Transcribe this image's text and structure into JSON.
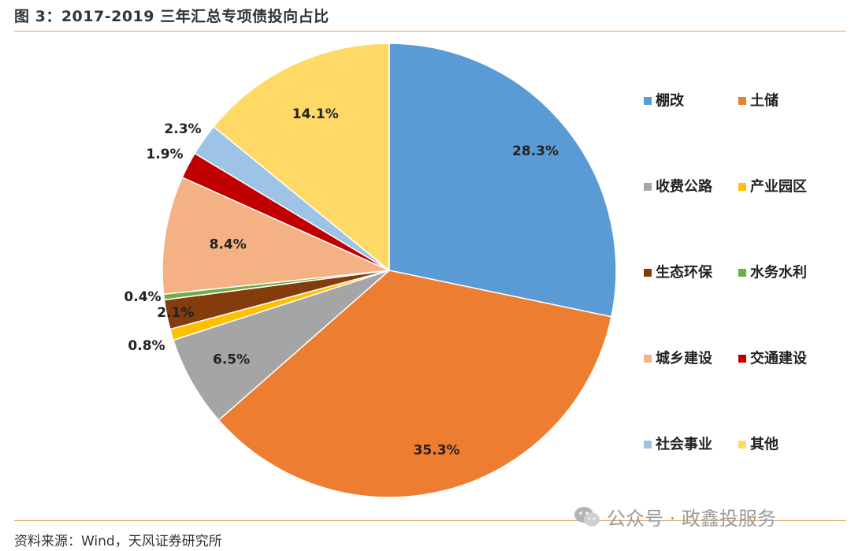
{
  "figure": {
    "title": "图 3：2017-2019 三年汇总专项债投向占比",
    "source": "资料来源：Wind，天风证券研究所",
    "watermark": "公众号 · 政鑫投服务"
  },
  "chart_data": {
    "type": "pie",
    "title": "图 3：2017-2019 三年汇总专项债投向占比",
    "start_angle_deg": 0,
    "direction": "clockwise",
    "legend_placement": "right",
    "slices": [
      {
        "name": "棚改",
        "value": 28.3,
        "label": "28.3%",
        "color": "#5b9bd5"
      },
      {
        "name": "土储",
        "value": 35.3,
        "label": "35.3%",
        "color": "#ed7d31"
      },
      {
        "name": "收费公路",
        "value": 6.5,
        "label": "6.5%",
        "color": "#a5a5a5"
      },
      {
        "name": "产业园区",
        "value": 0.8,
        "label": "0.8%",
        "color": "#ffc000"
      },
      {
        "name": "生态环保",
        "value": 2.1,
        "label": "2.1%",
        "color": "#843c0c"
      },
      {
        "name": "水务水利",
        "value": 0.4,
        "label": "0.4%",
        "color": "#70ad47"
      },
      {
        "name": "城乡建设",
        "value": 8.4,
        "label": "8.4%",
        "color": "#f4b183"
      },
      {
        "name": "交通建设",
        "value": 1.9,
        "label": "1.9%",
        "color": "#c00000"
      },
      {
        "name": "社会事业",
        "value": 2.3,
        "label": "2.3%",
        "color": "#9dc3e6"
      },
      {
        "name": "其他",
        "value": 14.1,
        "label": "14.1%",
        "color": "#ffd966"
      }
    ]
  }
}
